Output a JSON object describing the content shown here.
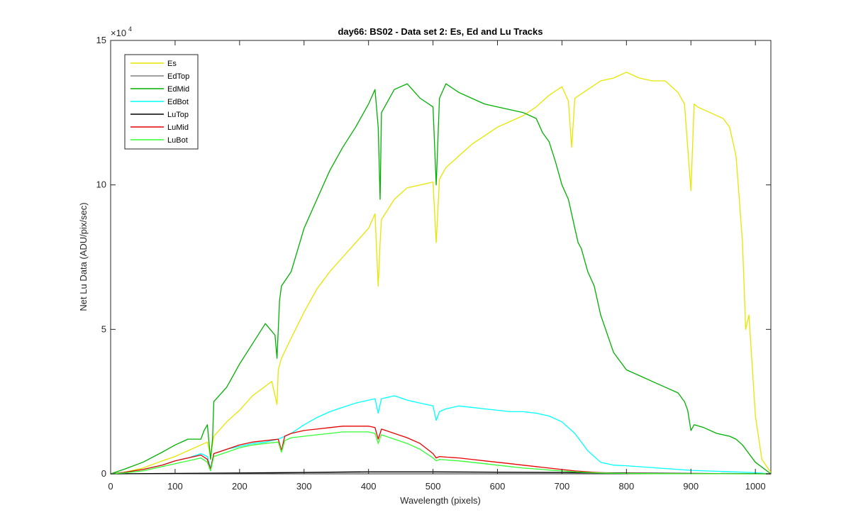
{
  "chart_data": {
    "type": "line",
    "title": "day66: BS02 - Data set 2: Es, Ed and Lu Tracks",
    "xlabel": "Wavelength (pixels)",
    "ylabel": "Net Lu Data (ADU/pix/sec)",
    "xlim": [
      0,
      1024
    ],
    "ylim": [
      0,
      150000
    ],
    "xticks": [
      0,
      100,
      200,
      300,
      400,
      500,
      600,
      700,
      800,
      900,
      1000
    ],
    "yticks": [
      0,
      50000,
      100000,
      150000
    ],
    "ytick_labels": [
      "0",
      "5",
      "10",
      "15"
    ],
    "y_exponent_label": "×10",
    "y_exponent_power": "4",
    "grid": false,
    "legend_position": "top-left",
    "series": [
      {
        "name": "Es",
        "color": "#e6e600",
        "x": [
          0,
          20,
          50,
          80,
          100,
          120,
          140,
          150,
          155,
          160,
          180,
          200,
          220,
          250,
          258,
          260,
          265,
          280,
          300,
          320,
          340,
          360,
          380,
          400,
          410,
          415,
          418,
          420,
          440,
          460,
          480,
          500,
          505,
          510,
          520,
          540,
          560,
          580,
          600,
          620,
          640,
          660,
          680,
          700,
          710,
          715,
          720,
          740,
          760,
          780,
          800,
          820,
          840,
          860,
          880,
          890,
          900,
          905,
          910,
          930,
          950,
          960,
          970,
          975,
          980,
          985,
          990,
          1000,
          1010,
          1024
        ],
        "y": [
          0,
          500,
          2000,
          4500,
          6000,
          8000,
          10000,
          11000,
          6000,
          13000,
          18000,
          22000,
          27000,
          32000,
          24000,
          36000,
          40000,
          47000,
          56000,
          64000,
          70000,
          75000,
          80000,
          85000,
          90000,
          65000,
          80000,
          88000,
          95000,
          99000,
          100000,
          101000,
          80000,
          102000,
          106000,
          110000,
          114000,
          117000,
          120000,
          122000,
          124000,
          127000,
          131000,
          134000,
          129000,
          113000,
          130000,
          133000,
          136000,
          137000,
          139000,
          137000,
          136000,
          136000,
          132000,
          128000,
          98000,
          128000,
          127000,
          125000,
          123000,
          120000,
          110000,
          95000,
          80000,
          50000,
          55000,
          20000,
          5000,
          500
        ]
      },
      {
        "name": "EdTop",
        "color": "#808080",
        "x": [
          0,
          100,
          200,
          300,
          400,
          500,
          600,
          700,
          800,
          900,
          1000,
          1024
        ],
        "y": [
          0,
          100,
          200,
          400,
          600,
          600,
          500,
          400,
          200,
          100,
          50,
          0
        ]
      },
      {
        "name": "EdMid",
        "color": "#00b000",
        "x": [
          0,
          20,
          50,
          80,
          100,
          120,
          140,
          145,
          150,
          155,
          158,
          160,
          180,
          200,
          220,
          240,
          255,
          258,
          262,
          265,
          280,
          300,
          320,
          340,
          360,
          380,
          400,
          410,
          415,
          418,
          420,
          440,
          460,
          480,
          500,
          505,
          510,
          520,
          540,
          560,
          580,
          600,
          620,
          640,
          660,
          670,
          680,
          690,
          700,
          710,
          720,
          725,
          730,
          740,
          750,
          760,
          780,
          800,
          820,
          840,
          860,
          880,
          890,
          895,
          900,
          905,
          920,
          940,
          960,
          970,
          980,
          1000,
          1024
        ],
        "y": [
          0,
          1500,
          4000,
          7500,
          10000,
          12000,
          12000,
          15000,
          17000,
          5000,
          12000,
          25000,
          30000,
          38000,
          45000,
          52000,
          48000,
          40000,
          60000,
          65000,
          70000,
          85000,
          95000,
          105000,
          113000,
          120000,
          128000,
          133000,
          120000,
          95000,
          125000,
          133000,
          135000,
          130000,
          127000,
          100000,
          130000,
          135000,
          132000,
          130000,
          128000,
          127000,
          126000,
          125000,
          123000,
          118000,
          115000,
          108000,
          100000,
          95000,
          85000,
          80000,
          78000,
          70000,
          65000,
          55000,
          42000,
          36000,
          34000,
          32000,
          30000,
          28000,
          25000,
          22000,
          15000,
          17000,
          16000,
          14000,
          13000,
          12000,
          10000,
          4000,
          0
        ]
      },
      {
        "name": "EdBot",
        "color": "#00ffff",
        "x": [
          0,
          20,
          50,
          80,
          100,
          120,
          140,
          150,
          155,
          160,
          180,
          200,
          220,
          240,
          260,
          280,
          300,
          320,
          340,
          360,
          380,
          400,
          410,
          415,
          418,
          420,
          440,
          460,
          480,
          500,
          505,
          510,
          520,
          540,
          560,
          580,
          600,
          620,
          640,
          660,
          680,
          700,
          720,
          740,
          760,
          780,
          800,
          850,
          900,
          950,
          1000,
          1024
        ],
        "y": [
          0,
          500,
          1500,
          3000,
          4500,
          5500,
          7000,
          6000,
          2000,
          7000,
          8500,
          9500,
          10500,
          11000,
          12000,
          14000,
          17000,
          19500,
          21500,
          23000,
          24500,
          25500,
          26000,
          21000,
          24000,
          26000,
          27000,
          25500,
          24500,
          23500,
          18500,
          21500,
          22500,
          23500,
          23000,
          22500,
          22000,
          21500,
          21500,
          21000,
          20000,
          18000,
          14000,
          8000,
          4000,
          3000,
          2800,
          2000,
          1200,
          800,
          400,
          0
        ]
      },
      {
        "name": "LuTop",
        "color": "#000000",
        "x": [
          0,
          100,
          200,
          300,
          400,
          500,
          600,
          700,
          800,
          900,
          1000,
          1024
        ],
        "y": [
          0,
          150,
          300,
          500,
          700,
          700,
          600,
          500,
          300,
          150,
          50,
          0
        ]
      },
      {
        "name": "LuMid",
        "color": "#e60000",
        "x": [
          0,
          20,
          50,
          80,
          100,
          120,
          140,
          150,
          155,
          160,
          180,
          200,
          220,
          240,
          260,
          265,
          270,
          280,
          300,
          320,
          340,
          360,
          380,
          400,
          410,
          415,
          418,
          420,
          440,
          460,
          480,
          500,
          505,
          510,
          520,
          540,
          560,
          580,
          600,
          620,
          640,
          660,
          680,
          700,
          720,
          740,
          760,
          780,
          800,
          850,
          900,
          950,
          1000,
          1024
        ],
        "y": [
          0,
          500,
          1500,
          3000,
          4500,
          5500,
          6500,
          5000,
          1500,
          7000,
          8500,
          10000,
          11000,
          11500,
          12000,
          8000,
          13000,
          14000,
          15000,
          15500,
          16000,
          16500,
          16500,
          16500,
          16000,
          12000,
          14000,
          15500,
          14000,
          12500,
          10500,
          7000,
          5500,
          6000,
          5800,
          5500,
          5000,
          4500,
          4000,
          3500,
          3000,
          2500,
          2000,
          1500,
          1000,
          700,
          400,
          250,
          150,
          80,
          40,
          20,
          0,
          0
        ]
      },
      {
        "name": "LuBot",
        "color": "#33ff33",
        "x": [
          0,
          20,
          50,
          80,
          100,
          120,
          140,
          150,
          155,
          160,
          180,
          200,
          220,
          240,
          260,
          265,
          270,
          280,
          300,
          320,
          340,
          360,
          380,
          400,
          410,
          415,
          418,
          420,
          440,
          460,
          480,
          500,
          505,
          510,
          520,
          540,
          560,
          580,
          600,
          620,
          640,
          660,
          680,
          700,
          720,
          740,
          760,
          780,
          800,
          850,
          900,
          950,
          1000,
          1024
        ],
        "y": [
          0,
          300,
          1000,
          2500,
          3500,
          4500,
          5500,
          4000,
          1000,
          6000,
          7500,
          9000,
          10000,
          10500,
          11000,
          7500,
          11500,
          12500,
          13000,
          13500,
          14000,
          14500,
          14500,
          14500,
          14000,
          10500,
          12500,
          13500,
          12000,
          10500,
          8500,
          5500,
          4500,
          5000,
          4800,
          4500,
          4000,
          3500,
          3000,
          2500,
          2000,
          1700,
          1300,
          1000,
          700,
          500,
          300,
          200,
          120,
          60,
          30,
          15,
          0,
          0
        ]
      }
    ]
  }
}
